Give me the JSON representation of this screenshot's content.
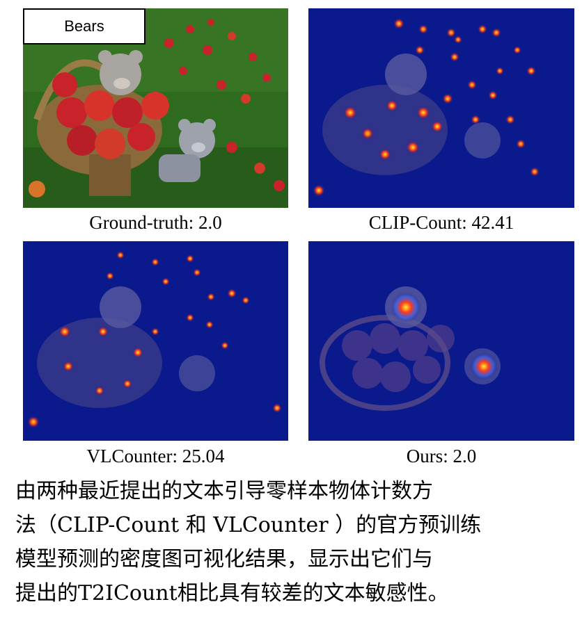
{
  "figure": {
    "query_label": "Bears",
    "panels": [
      {
        "id": "ground-truth",
        "caption": "Ground-truth: 2.0",
        "heat": "none"
      },
      {
        "id": "clip-count",
        "caption": "CLIP-Count: 42.41",
        "heat": "scattered"
      },
      {
        "id": "vlcounter",
        "caption": "VLCounter: 25.04",
        "heat": "scattered"
      },
      {
        "id": "ours",
        "caption": "Ours: 2.0",
        "heat": "focused"
      }
    ],
    "colors": {
      "grass": "#2f6b1f",
      "apple_red": "#c8222a",
      "overlay_blue": "#0a1a8c",
      "heat_red": "#ff3a1a",
      "heat_yellow": "#ffee33"
    }
  },
  "description": {
    "lines": [
      "由两种最近提出的文本引导零样本物体计数方",
      "法（CLIP-Count  和 VLCounter ）的官方预训练",
      "模型预测的密度图可视化结果，显示出它们与",
      "提出的T2ICount相比具有较差的文本敏感性。"
    ]
  }
}
